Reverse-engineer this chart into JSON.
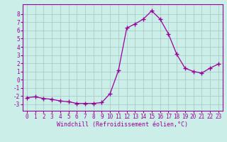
{
  "x": [
    0,
    1,
    2,
    3,
    4,
    5,
    6,
    7,
    8,
    9,
    10,
    11,
    12,
    13,
    14,
    15,
    16,
    17,
    18,
    19,
    20,
    21,
    22,
    23
  ],
  "y": [
    -2.2,
    -2.1,
    -2.3,
    -2.4,
    -2.6,
    -2.7,
    -2.9,
    -2.9,
    -2.9,
    -2.8,
    -1.7,
    1.1,
    6.3,
    6.8,
    7.4,
    8.4,
    7.4,
    5.6,
    3.1,
    1.4,
    1.0,
    0.8,
    1.4,
    1.9
  ],
  "line_color": "#990099",
  "marker": "+",
  "marker_size": 4,
  "bg_color": "#cceee8",
  "grid_color": "#aacccc",
  "axis_color": "#990099",
  "tick_color": "#990099",
  "xlabel": "Windchill (Refroidissement éolien,°C)",
  "xlabel_color": "#990099",
  "ylim": [
    -3.8,
    9.2
  ],
  "xlim": [
    -0.5,
    23.5
  ],
  "yticks": [
    -3,
    -2,
    -1,
    0,
    1,
    2,
    3,
    4,
    5,
    6,
    7,
    8
  ],
  "xticks": [
    0,
    1,
    2,
    3,
    4,
    5,
    6,
    7,
    8,
    9,
    10,
    11,
    12,
    13,
    14,
    15,
    16,
    17,
    18,
    19,
    20,
    21,
    22,
    23
  ],
  "tick_fontsize": 5.5,
  "label_fontsize": 6.0,
  "linewidth": 0.9,
  "markeredgewidth": 1.0
}
